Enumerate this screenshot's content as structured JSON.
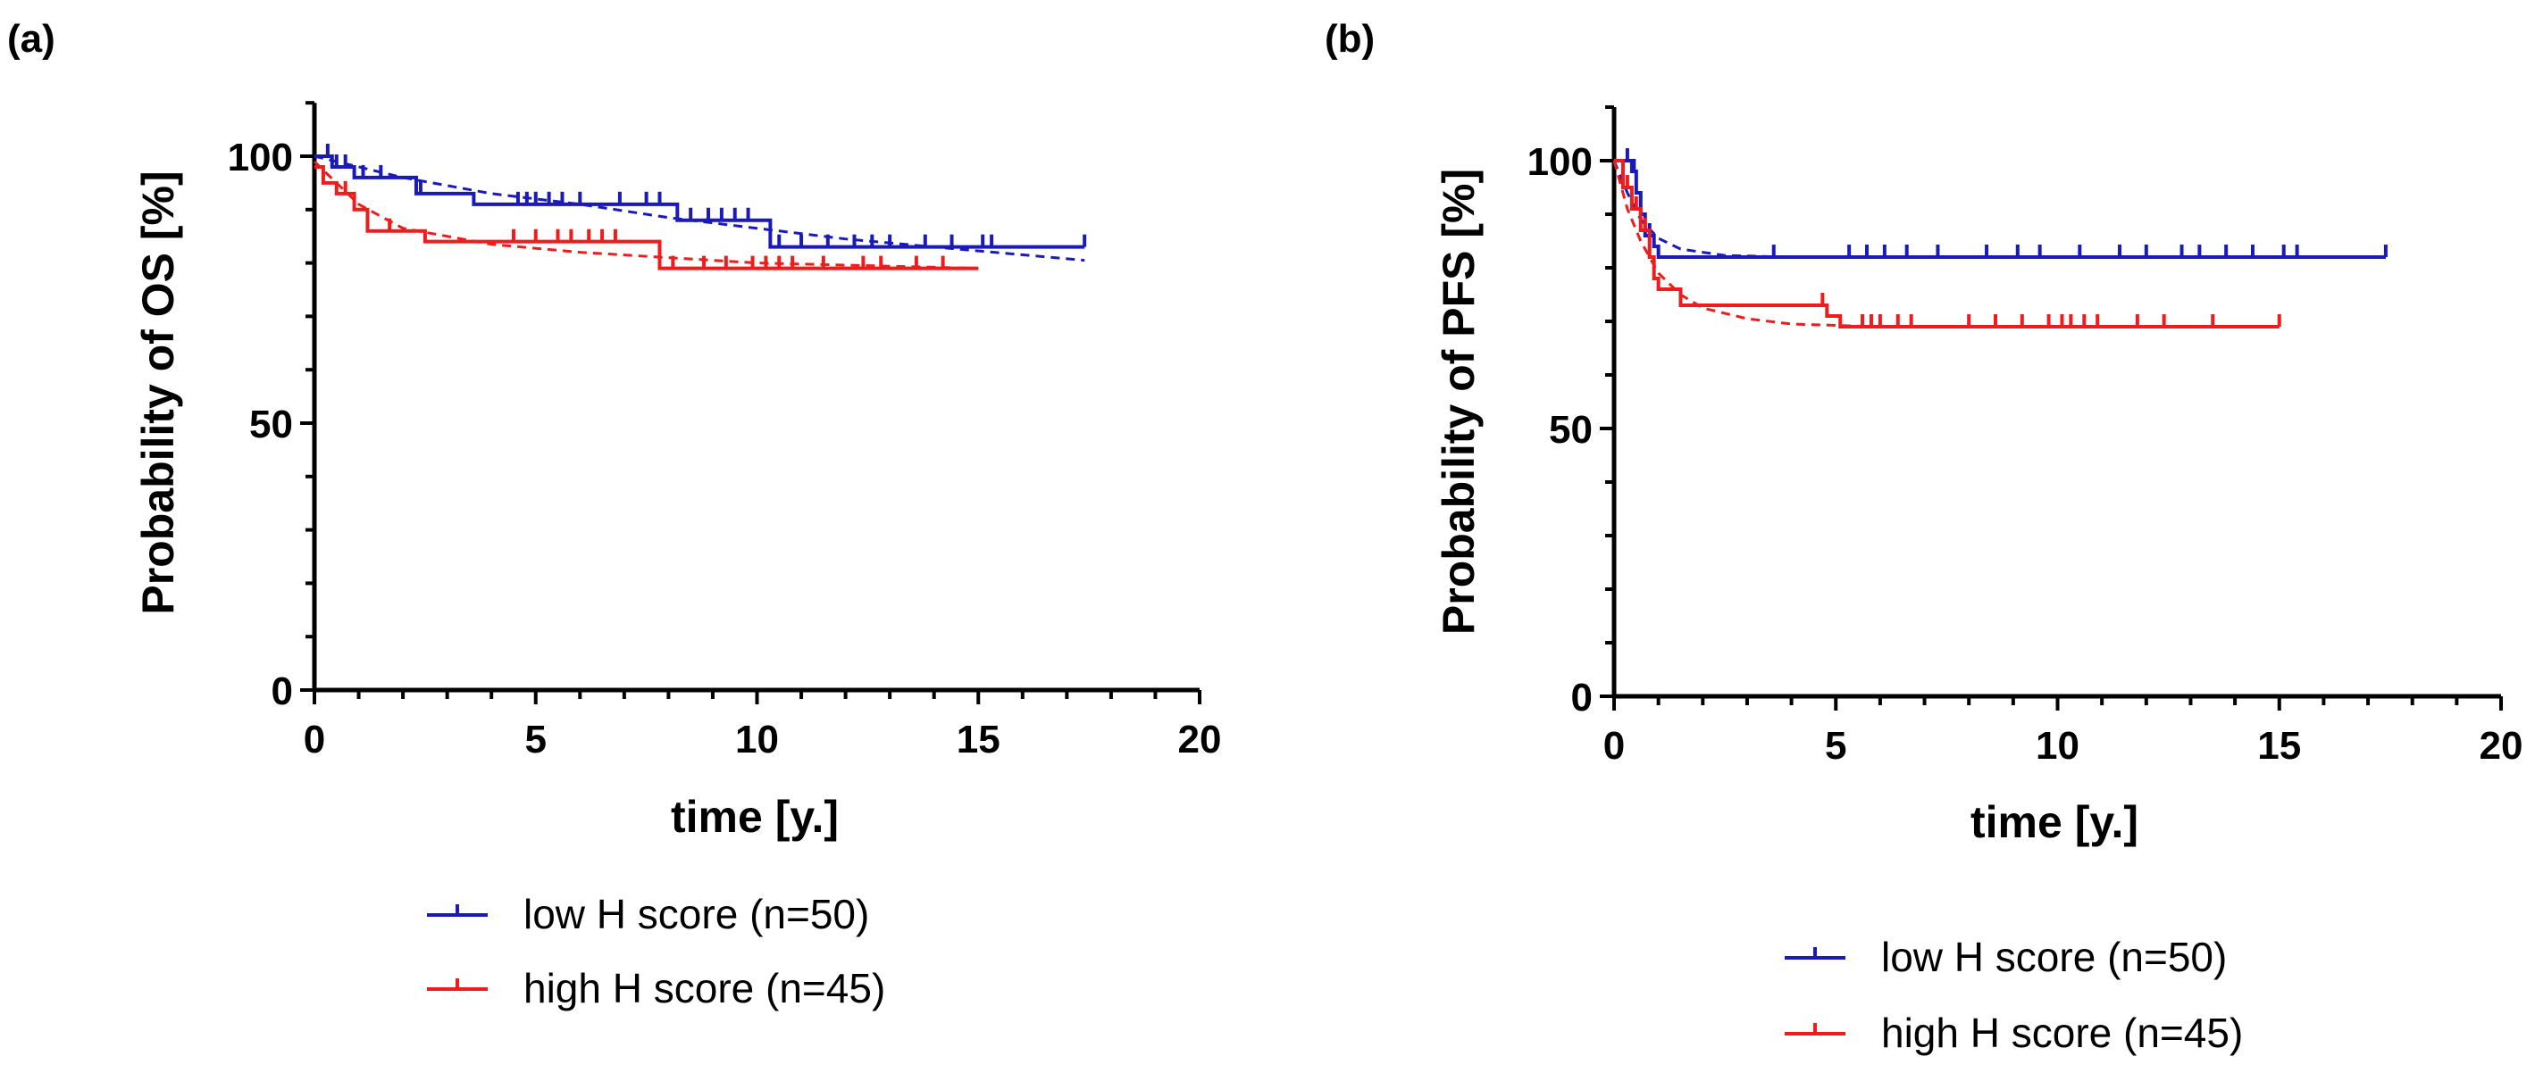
{
  "figure": {
    "panel_labels": [
      "(a)",
      "(b)"
    ]
  },
  "colors": {
    "low": "#1a1ab8",
    "high": "#ee1c1c",
    "axis": "#000000"
  },
  "chart_data": [
    {
      "type": "line",
      "subtype": "kaplan-meier",
      "panel": "(a)",
      "xlabel": "time [y.]",
      "ylabel": "Probability of OS [%]",
      "xlim": [
        0,
        20
      ],
      "ylim": [
        0,
        110
      ],
      "xticks": [
        0,
        5,
        10,
        15,
        20
      ],
      "yticks": [
        0,
        50,
        100
      ],
      "legend": [
        "low H score (n=50)",
        "high H score (n=45)"
      ],
      "legend_position": "bottom",
      "series": [
        {
          "name": "low H score (n=50)",
          "steps": [
            [
              0,
              100
            ],
            [
              0.4,
              98
            ],
            [
              0.9,
              96
            ],
            [
              2.3,
              93
            ],
            [
              3.6,
              91
            ],
            [
              8.2,
              88
            ],
            [
              10.3,
              83
            ],
            [
              17.4,
              83
            ]
          ],
          "censor_x": [
            0.3,
            0.5,
            0.7,
            1.1,
            1.5,
            2.4,
            4.6,
            4.8,
            5.0,
            5.3,
            5.6,
            6.0,
            6.9,
            7.5,
            7.8,
            8.5,
            8.9,
            9.2,
            9.5,
            9.8,
            10.5,
            11.0,
            11.6,
            12.2,
            12.6,
            13.0,
            13.8,
            14.4,
            15.1,
            15.3,
            17.4
          ],
          "fit": [
            [
              0,
              100
            ],
            [
              2,
              96
            ],
            [
              4,
              93
            ],
            [
              6,
              91
            ],
            [
              8,
              88.5
            ],
            [
              10,
              86.5
            ],
            [
              12,
              84.5
            ],
            [
              14,
              83
            ],
            [
              17.4,
              80.5
            ]
          ]
        },
        {
          "name": "high H score (n=45)",
          "steps": [
            [
              0,
              98
            ],
            [
              0.2,
              95
            ],
            [
              0.5,
              93
            ],
            [
              0.9,
              90
            ],
            [
              1.2,
              86
            ],
            [
              2.5,
              84
            ],
            [
              7.8,
              79
            ],
            [
              15.0,
              79
            ]
          ],
          "censor_x": [
            0.7,
            1.7,
            4.5,
            5.0,
            5.5,
            5.8,
            6.2,
            6.5,
            6.8,
            8.1,
            8.8,
            9.3,
            9.9,
            10.2,
            10.5,
            10.8,
            11.5,
            12.4,
            12.8,
            13.6,
            14.2
          ],
          "fit": [
            [
              0,
              99
            ],
            [
              1,
              91
            ],
            [
              2,
              86.5
            ],
            [
              4,
              83.5
            ],
            [
              6,
              82
            ],
            [
              8,
              81
            ],
            [
              10,
              80
            ],
            [
              12,
              79.6
            ],
            [
              15,
              79
            ]
          ]
        }
      ]
    },
    {
      "type": "line",
      "subtype": "kaplan-meier",
      "panel": "(b)",
      "xlabel": "time [y.]",
      "ylabel": "Probability of PFS [%]",
      "xlim": [
        0,
        20
      ],
      "ylim": [
        0,
        110
      ],
      "xticks": [
        0,
        5,
        10,
        15,
        20
      ],
      "yticks": [
        0,
        50,
        100
      ],
      "legend": [
        "low H score (n=50)",
        "high H score (n=45)"
      ],
      "legend_position": "bottom",
      "series": [
        {
          "name": "low H score (n=50)",
          "steps": [
            [
              0,
              100
            ],
            [
              0.4,
              98
            ],
            [
              0.5,
              94
            ],
            [
              0.6,
              90
            ],
            [
              0.7,
              86
            ],
            [
              0.9,
              84
            ],
            [
              1.0,
              82
            ],
            [
              17.4,
              82
            ]
          ],
          "censor_x": [
            0.3,
            0.45,
            0.8,
            3.6,
            5.3,
            5.7,
            6.1,
            6.6,
            7.3,
            8.4,
            9.1,
            9.6,
            10.5,
            11.4,
            12.0,
            12.8,
            13.2,
            13.8,
            14.4,
            15.1,
            15.4,
            17.4
          ],
          "fit": [
            [
              0,
              100
            ],
            [
              0.3,
              94
            ],
            [
              0.6,
              89
            ],
            [
              1,
              85.5
            ],
            [
              1.5,
              83.5
            ],
            [
              2.5,
              82.3
            ],
            [
              4,
              82
            ],
            [
              17.4,
              82
            ]
          ]
        },
        {
          "name": "high H score (n=45)",
          "steps": [
            [
              0,
              100
            ],
            [
              0.2,
              95
            ],
            [
              0.4,
              91
            ],
            [
              0.6,
              87
            ],
            [
              0.8,
              82
            ],
            [
              0.9,
              78
            ],
            [
              1.0,
              76
            ],
            [
              1.5,
              73
            ],
            [
              4.8,
              71
            ],
            [
              5.1,
              69
            ],
            [
              15.0,
              69
            ]
          ],
          "censor_x": [
            0.3,
            0.5,
            0.7,
            4.7,
            5.6,
            5.8,
            6.0,
            6.4,
            6.7,
            8.0,
            8.6,
            9.2,
            9.8,
            10.1,
            10.3,
            10.6,
            10.9,
            11.8,
            12.4,
            13.5,
            15.0
          ],
          "fit": [
            [
              0,
              100
            ],
            [
              0.3,
              91
            ],
            [
              0.6,
              85
            ],
            [
              1,
              79
            ],
            [
              1.5,
              75
            ],
            [
              2,
              72.5
            ],
            [
              3,
              70.5
            ],
            [
              4,
              69.5
            ],
            [
              6,
              69
            ],
            [
              15,
              69
            ]
          ]
        }
      ]
    }
  ]
}
